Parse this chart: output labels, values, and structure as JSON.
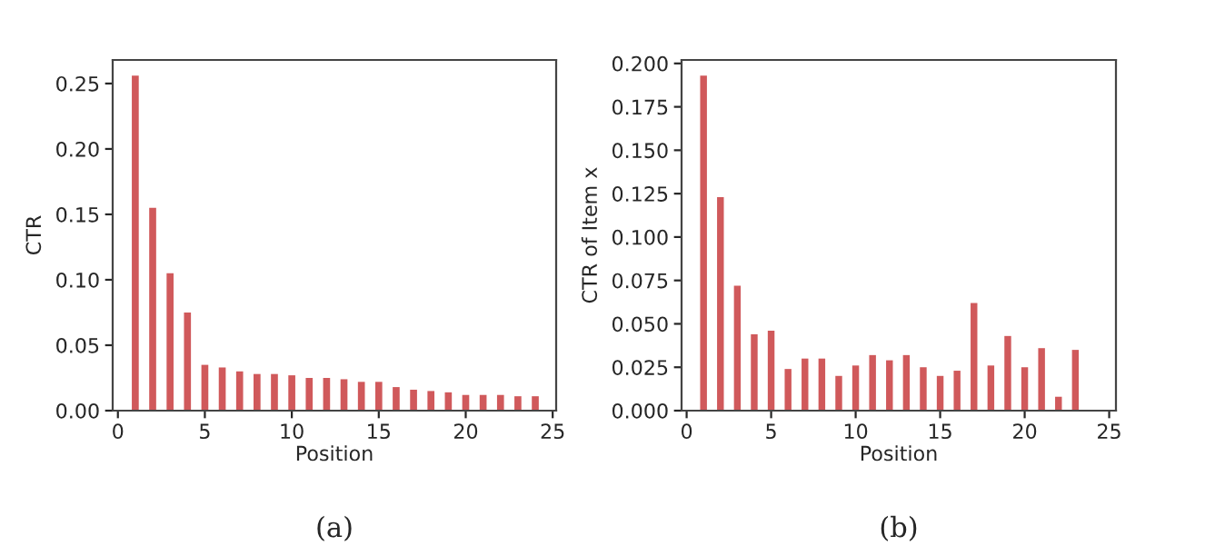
{
  "chart_data": [
    {
      "type": "bar",
      "xlabel": "Position",
      "ylabel": "CTR",
      "annotations": [
        "(a)"
      ],
      "color": "#d0595b",
      "x": [
        1,
        2,
        3,
        4,
        5,
        6,
        7,
        8,
        9,
        10,
        11,
        12,
        13,
        14,
        15,
        16,
        17,
        18,
        19,
        20,
        21,
        22,
        23,
        24
      ],
      "values": [
        0.256,
        0.155,
        0.105,
        0.075,
        0.035,
        0.033,
        0.03,
        0.028,
        0.028,
        0.027,
        0.025,
        0.025,
        0.024,
        0.022,
        0.022,
        0.018,
        0.016,
        0.015,
        0.014,
        0.012,
        0.012,
        0.012,
        0.011,
        0.011
      ],
      "xlim": [
        -0.3,
        25.2
      ],
      "xticks": [
        0,
        5,
        10,
        15,
        20,
        25
      ],
      "ylim": [
        0,
        0.268
      ],
      "yticks": [
        {
          "value": 0,
          "label": "0.00"
        },
        {
          "value": 0.05,
          "label": "0.05"
        },
        {
          "value": 0.1,
          "label": "0.10"
        },
        {
          "value": 0.15,
          "label": "0.15"
        },
        {
          "value": 0.2,
          "label": "0.20"
        },
        {
          "value": 0.25,
          "label": "0.25"
        }
      ],
      "grid": false
    },
    {
      "type": "bar",
      "xlabel": "Position",
      "ylabel": "CTR of Item x",
      "annotations": [
        "(b)"
      ],
      "color": "#d0595b",
      "x": [
        1,
        2,
        3,
        4,
        5,
        6,
        7,
        8,
        9,
        10,
        11,
        12,
        13,
        14,
        15,
        16,
        17,
        18,
        19,
        20,
        21,
        22,
        23
      ],
      "values": [
        0.193,
        0.123,
        0.072,
        0.044,
        0.046,
        0.024,
        0.03,
        0.03,
        0.02,
        0.026,
        0.032,
        0.029,
        0.032,
        0.025,
        0.02,
        0.023,
        0.062,
        0.026,
        0.043,
        0.025,
        0.036,
        0.008,
        0.035
      ],
      "xlim": [
        -0.3,
        25.4
      ],
      "xticks": [
        0,
        5,
        10,
        15,
        20,
        25
      ],
      "ylim": [
        0,
        0.202
      ],
      "yticks": [
        {
          "value": 0,
          "label": "0.000"
        },
        {
          "value": 0.025,
          "label": "0.025"
        },
        {
          "value": 0.05,
          "label": "0.050"
        },
        {
          "value": 0.075,
          "label": "0.075"
        },
        {
          "value": 0.1,
          "label": "0.100"
        },
        {
          "value": 0.125,
          "label": "0.125"
        },
        {
          "value": 0.15,
          "label": "0.150"
        },
        {
          "value": 0.175,
          "label": "0.175"
        },
        {
          "value": 0.2,
          "label": "0.200"
        }
      ],
      "grid": false
    }
  ]
}
